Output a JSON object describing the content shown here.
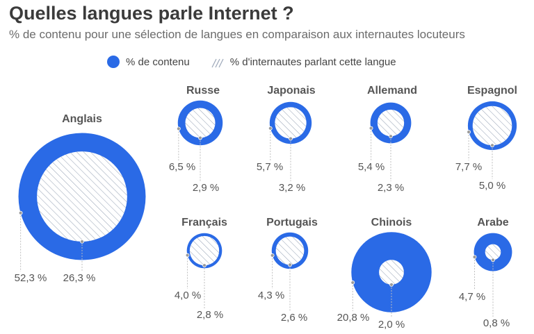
{
  "title": "Quelles langues parle Internet ?",
  "subtitle": "% de contenu pour une sélection de langues en comparaison aux internautes locuteurs",
  "legend": {
    "content_label": "% de contenu",
    "users_label": "% d'internautes parlant cette langue"
  },
  "colors": {
    "content": "#2a6ae6",
    "users_hatch": "#9aa6b8",
    "leader": "#bdbdbd"
  },
  "chart_data": {
    "type": "bubble",
    "title": "Quelles langues parle Internet ?",
    "subtitle": "% de contenu pour une sélection de langues en comparaison aux internautes locuteurs",
    "series": [
      {
        "name": "% de contenu"
      },
      {
        "name": "% d'internautes parlant cette langue"
      }
    ],
    "languages": [
      {
        "name": "Anglais",
        "content": 52.3,
        "content_label": "52,3 %",
        "users": 26.3,
        "users_label": "26,3 %"
      },
      {
        "name": "Russe",
        "content": 6.5,
        "content_label": "6,5 %",
        "users": 2.9,
        "users_label": "2,9 %"
      },
      {
        "name": "Japonais",
        "content": 5.7,
        "content_label": "5,7 %",
        "users": 3.2,
        "users_label": "3,2 %"
      },
      {
        "name": "Allemand",
        "content": 5.4,
        "content_label": "5,4 %",
        "users": 2.3,
        "users_label": "2,3 %"
      },
      {
        "name": "Espagnol",
        "content": 7.7,
        "content_label": "7,7 %",
        "users": 5.0,
        "users_label": "5,0 %"
      },
      {
        "name": "Français",
        "content": 4.0,
        "content_label": "4,0 %",
        "users": 2.8,
        "users_label": "2,8 %"
      },
      {
        "name": "Portugais",
        "content": 4.3,
        "content_label": "4,3 %",
        "users": 2.6,
        "users_label": "2,6 %"
      },
      {
        "name": "Chinois",
        "content": 20.8,
        "content_label": "20,8 %",
        "users": 2.0,
        "users_label": "2,0 %"
      },
      {
        "name": "Arabe",
        "content": 4.7,
        "content_label": "4,7 %",
        "users": 0.8,
        "users_label": "0,8 %"
      }
    ]
  }
}
